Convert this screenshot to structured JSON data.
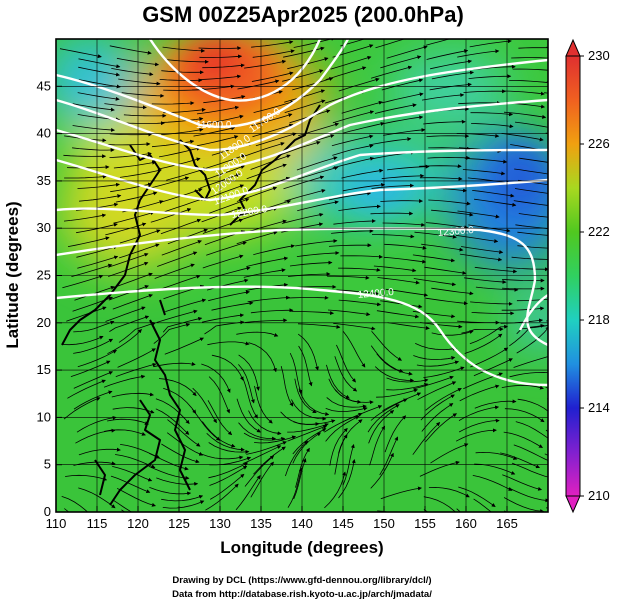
{
  "title": "GSM 00Z25Apr2025 (200.0hPa)",
  "map": {
    "xlabel": "Longitude (degrees)",
    "ylabel": "Latitude  (degrees)",
    "xlim": [
      110,
      170
    ],
    "ylim": [
      0,
      50
    ],
    "xticks": [
      "110",
      "115",
      "120",
      "125",
      "130",
      "135",
      "140",
      "145",
      "150",
      "155",
      "160",
      "165"
    ],
    "yticks": [
      "0",
      "5",
      "10",
      "15",
      "20",
      "25",
      "30",
      "35",
      "40",
      "45"
    ]
  },
  "colorbar": {
    "ticks": [
      "210",
      "214",
      "218",
      "222",
      "226",
      "230"
    ],
    "range": [
      210,
      230
    ],
    "colors": [
      "#e020c0",
      "#8020d0",
      "#2020d0",
      "#2090e0",
      "#20d0c0",
      "#30d060",
      "#50c820",
      "#a8d820",
      "#f0a010",
      "#f06020",
      "#e03030"
    ]
  },
  "contour_labels": [
    "11600.0",
    "11700.0",
    "11800.0",
    "11900.0",
    "12000.0",
    "12100.0",
    "12200.0",
    "12300.0",
    "12400.0"
  ],
  "credits": {
    "line1": "Drawing by DCL (https://www.gfd-dennou.org/library/dcl/)",
    "line2": "Data from http://database.rish.kyoto-u.ac.jp/arch/jmadata/"
  }
}
